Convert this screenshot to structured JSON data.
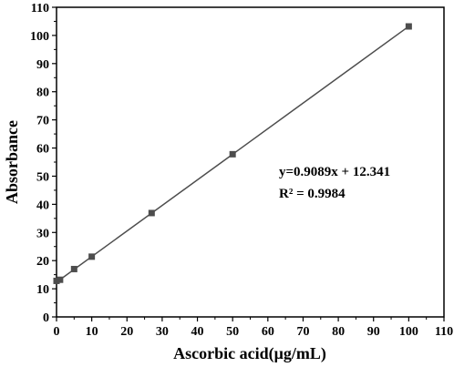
{
  "chart_data": {
    "type": "scatter",
    "xlabel": "Ascorbic acid(μg/mL)",
    "ylabel": "Absorbance",
    "xlim": [
      0,
      110
    ],
    "ylim": [
      0,
      110
    ],
    "xticks": [
      0,
      10,
      20,
      30,
      40,
      50,
      60,
      70,
      80,
      90,
      100,
      110
    ],
    "yticks": [
      0,
      10,
      20,
      30,
      40,
      50,
      60,
      70,
      80,
      90,
      100,
      110
    ],
    "xtick_labels": [
      "0",
      "10",
      "20",
      "30",
      "40",
      "50",
      "60",
      "70",
      "80",
      "90",
      "100",
      "110"
    ],
    "ytick_labels": [
      "0",
      "10",
      "20",
      "30",
      "40",
      "50",
      "60",
      "70",
      "80",
      "90",
      "100",
      "110"
    ],
    "grid": false,
    "series": [
      {
        "marker": "square",
        "color": "#4d4d4d",
        "x": [
          0,
          1,
          5,
          10,
          27,
          50,
          100
        ],
        "y": [
          12.8,
          13.2,
          17.0,
          21.4,
          36.9,
          57.8,
          103.2
        ]
      }
    ],
    "fit_line": {
      "slope": 0.9089,
      "intercept": 12.341,
      "x_range": [
        0,
        100
      ],
      "color": "#4d4d4d"
    },
    "annotations": {
      "equation": "y=0.9089x + 12.341",
      "r_squared": "R² = 0.9984"
    }
  }
}
